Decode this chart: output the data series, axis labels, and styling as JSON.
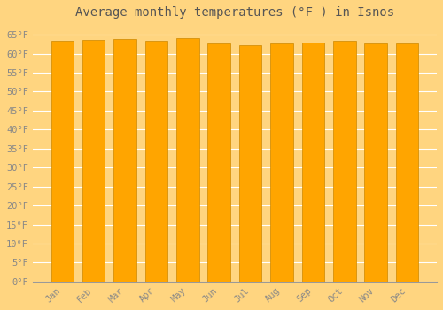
{
  "title": "Average monthly temperatures (°F ) in Isnos",
  "months": [
    "Jan",
    "Feb",
    "Mar",
    "Apr",
    "May",
    "Jun",
    "Jul",
    "Aug",
    "Sep",
    "Oct",
    "Nov",
    "Dec"
  ],
  "values": [
    63.5,
    63.7,
    63.9,
    63.5,
    64.0,
    62.8,
    62.2,
    62.6,
    63.0,
    63.4,
    62.8,
    62.8
  ],
  "bar_color": "#FFA500",
  "bar_edge_color": "#CC8800",
  "background_color": "#FFD580",
  "axes_bg_color": "#FFD580",
  "grid_color": "#FFFFFF",
  "text_color": "#888888",
  "ylim": [
    0,
    68
  ],
  "yticks": [
    0,
    5,
    10,
    15,
    20,
    25,
    30,
    35,
    40,
    45,
    50,
    55,
    60,
    65
  ],
  "ytick_labels": [
    "0°F",
    "5°F",
    "10°F",
    "15°F",
    "20°F",
    "25°F",
    "30°F",
    "35°F",
    "40°F",
    "45°F",
    "50°F",
    "55°F",
    "60°F",
    "65°F"
  ],
  "title_fontsize": 10,
  "tick_fontsize": 7.5,
  "bar_width": 0.72
}
